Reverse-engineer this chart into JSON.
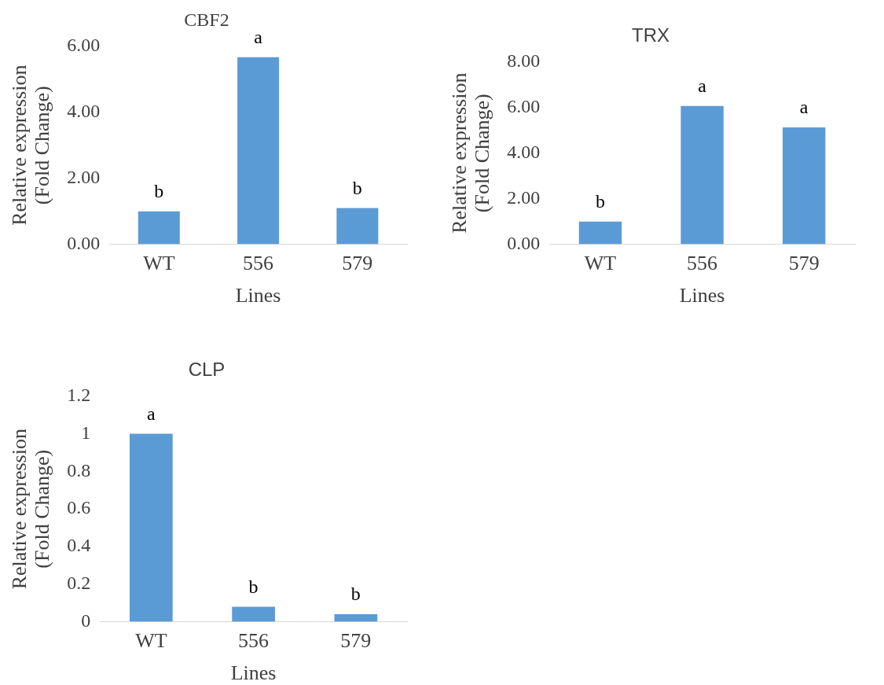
{
  "chart_data": [
    {
      "type": "bar",
      "title": "CBF2",
      "xlabel": "Lines",
      "ylabel": "Relative expression\n(Fold Change)",
      "categories": [
        "WT",
        "556",
        "579"
      ],
      "values": [
        1.0,
        5.67,
        1.1
      ],
      "color": "#5b9bd5",
      "ylim": [
        0,
        6
      ],
      "yticks": [
        {
          "value": 0,
          "label": "0.00"
        },
        {
          "value": 2,
          "label": "2.00"
        },
        {
          "value": 4,
          "label": "4.00"
        },
        {
          "value": 6,
          "label": "6.00"
        }
      ],
      "grid": false,
      "annotations": [
        {
          "text": "b",
          "x": "WT",
          "y": 1.0
        },
        {
          "text": "a",
          "x": "556",
          "y": 5.67
        },
        {
          "text": "b",
          "x": "579",
          "y": 1.1
        }
      ]
    },
    {
      "type": "bar",
      "title": "TRX",
      "xlabel": "Lines",
      "ylabel": "Relative expression\n(Fold Change)",
      "categories": [
        "WT",
        "556",
        "579"
      ],
      "values": [
        1.0,
        6.07,
        5.13
      ],
      "color": "#5b9bd5",
      "ylim": [
        0,
        8
      ],
      "yticks": [
        {
          "value": 0,
          "label": "0.00"
        },
        {
          "value": 2,
          "label": "2.00"
        },
        {
          "value": 4,
          "label": "4.00"
        },
        {
          "value": 6,
          "label": "6.00"
        },
        {
          "value": 8,
          "label": "8.00"
        }
      ],
      "grid": false,
      "annotations": [
        {
          "text": "b",
          "x": "WT",
          "y": 1.0
        },
        {
          "text": "a",
          "x": "556",
          "y": 6.07
        },
        {
          "text": "a",
          "x": "579",
          "y": 5.13
        }
      ]
    },
    {
      "type": "bar",
      "title": "CLP",
      "xlabel": "Lines",
      "ylabel": "Relative expression\n(Fold Change)",
      "categories": [
        "WT",
        "556",
        "579"
      ],
      "values": [
        1.0,
        0.08,
        0.04
      ],
      "color": "#5b9bd5",
      "ylim": [
        0,
        1.2
      ],
      "yticks": [
        0,
        0.2,
        0.4,
        0.6,
        0.8,
        1,
        1.2
      ],
      "grid": false,
      "annotations": [
        {
          "text": "a",
          "x": "WT",
          "y": 1.0
        },
        {
          "text": "b",
          "x": "556",
          "y": 0.08
        },
        {
          "text": "b",
          "x": "579",
          "y": 0.04
        }
      ]
    }
  ]
}
